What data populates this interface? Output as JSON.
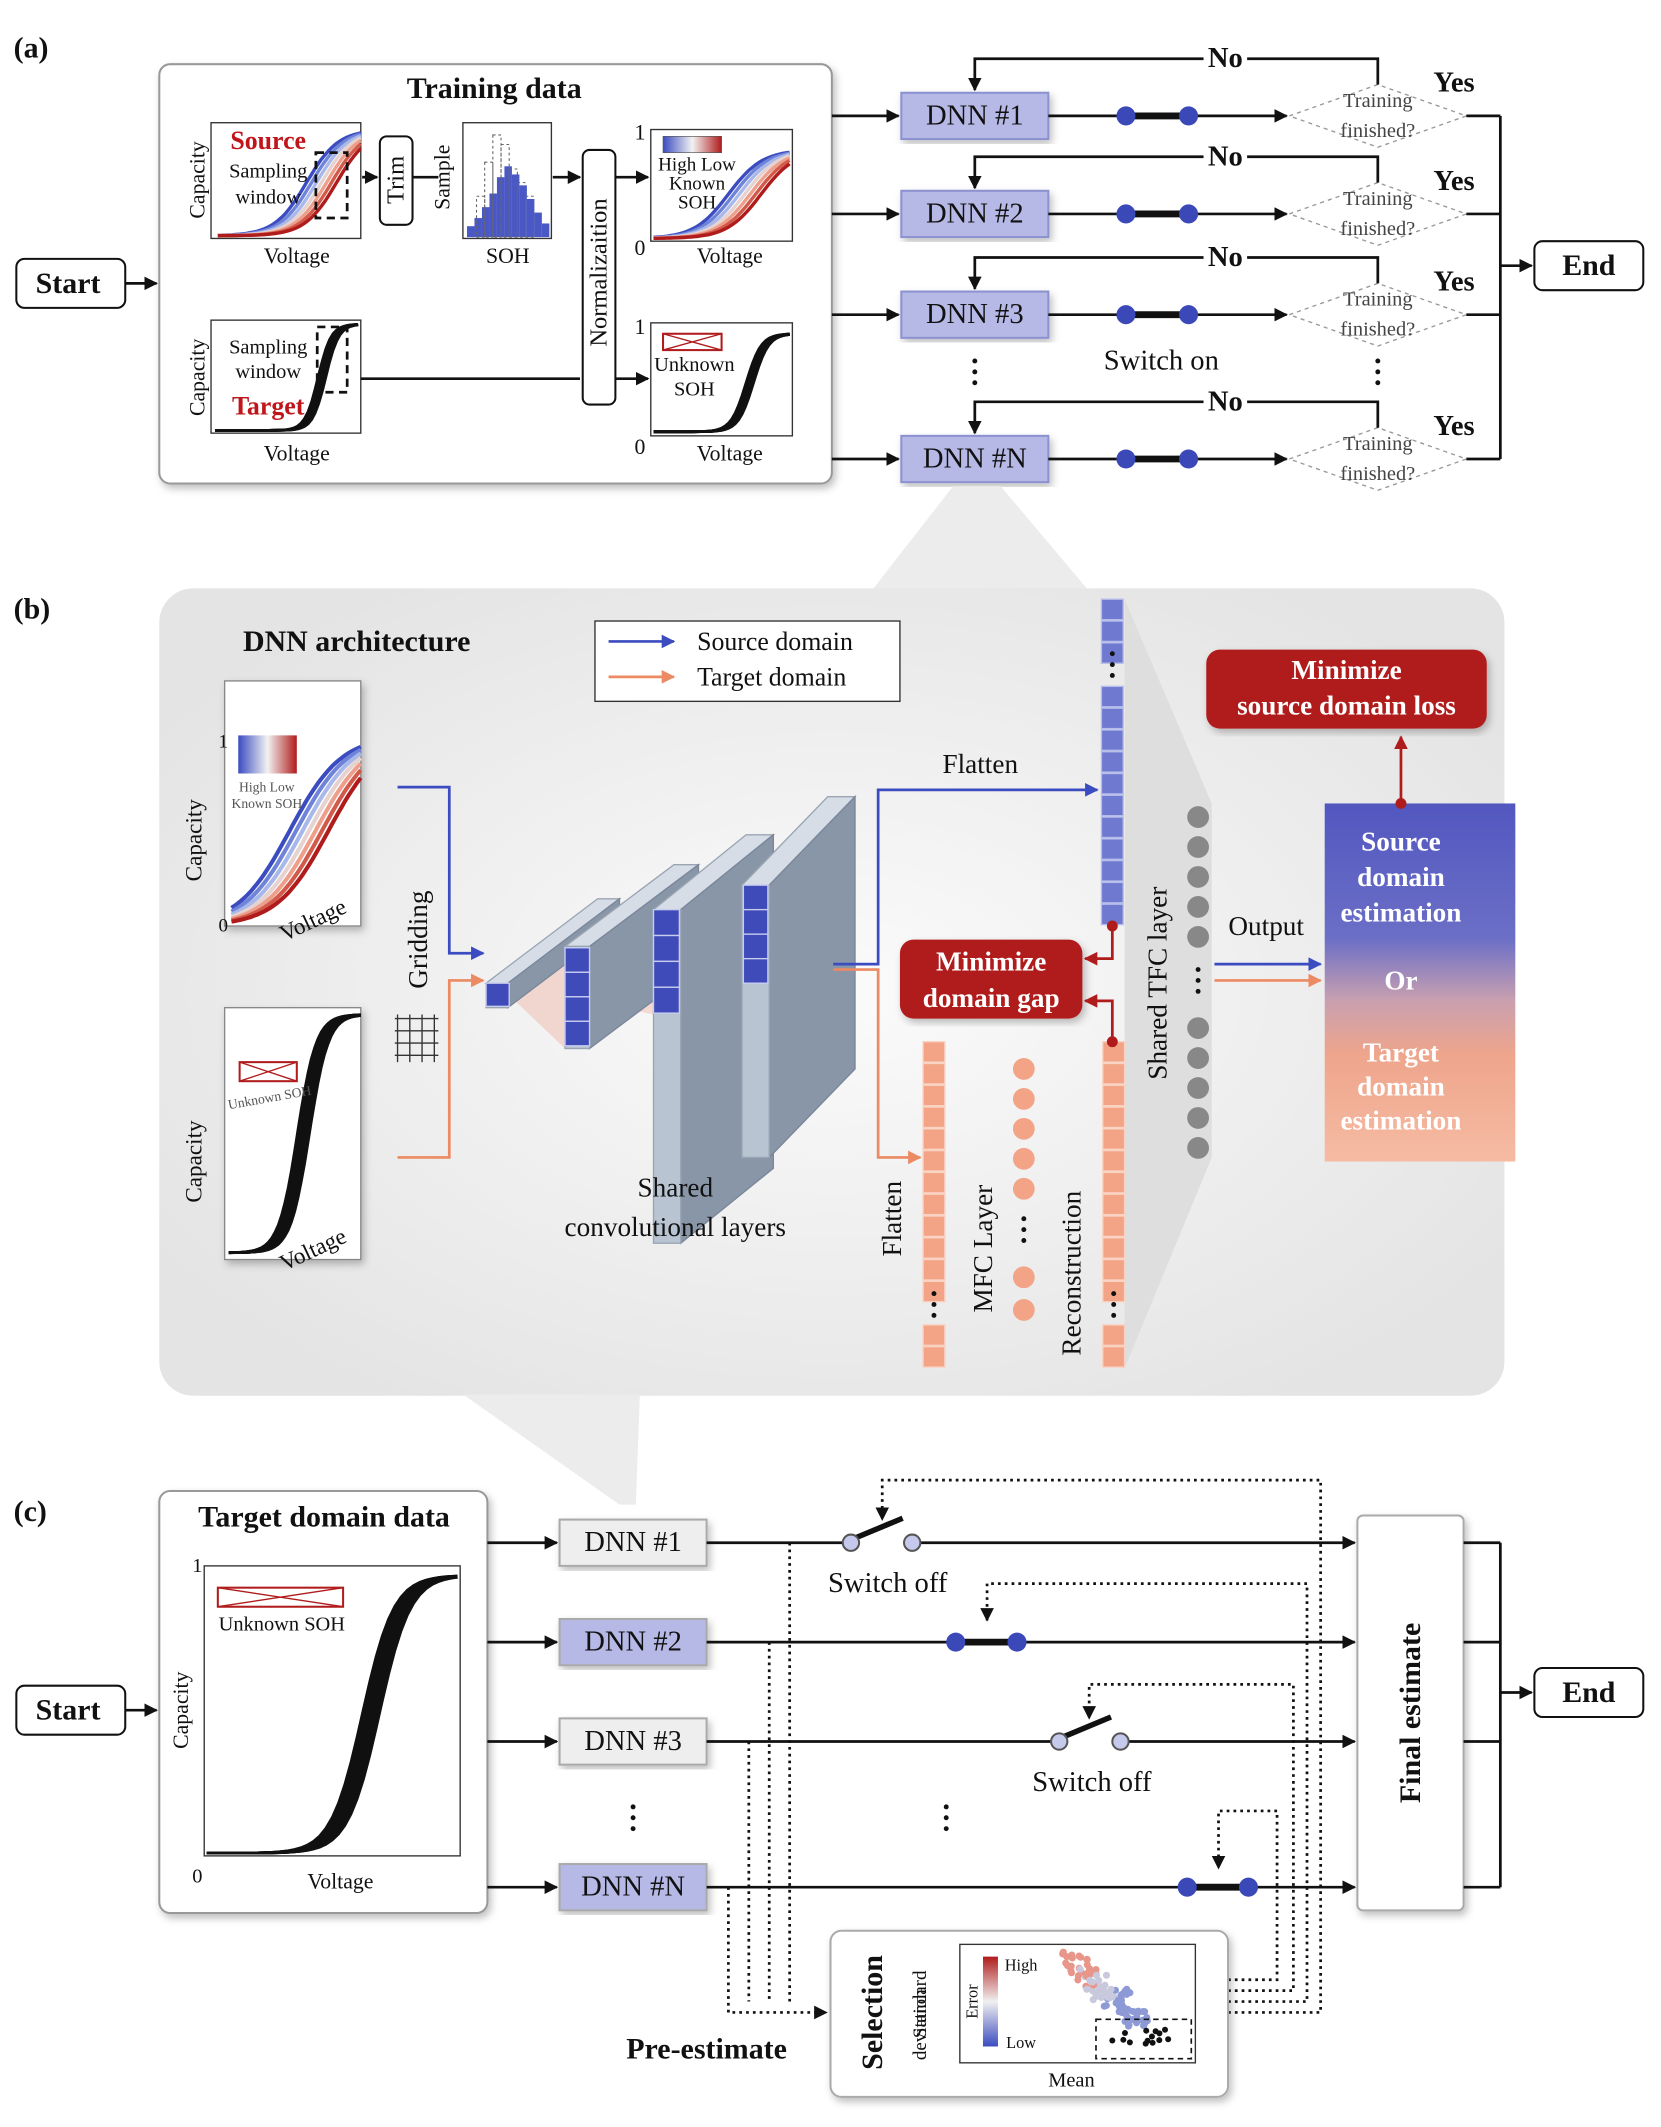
{
  "panel_a": {
    "label": "(a)",
    "training_data": {
      "title": "Training data",
      "source_plot": {
        "series_label": "Source",
        "window": [
          "Sampling",
          "window"
        ],
        "y_axis": "Capacity",
        "x_axis": "Voltage"
      },
      "trim": "Trim",
      "histogram": {
        "y_axis": "Sample",
        "x_axis": "SOH"
      },
      "normalization": "Normalizaition",
      "source_normalized": {
        "y_max": "1",
        "y_min": "0",
        "legend": [
          "High Low",
          "Known",
          "SOH"
        ],
        "x_axis": "Voltage"
      },
      "target_plot": {
        "y_axis": "Capacity",
        "window": [
          "Sampling",
          "window"
        ],
        "series_label": "Target",
        "x_axis": "Voltage"
      },
      "target_normalized": {
        "y_max": "1",
        "y_min": "0",
        "legend": [
          "Unknown",
          "SOH"
        ],
        "x_axis": "Voltage"
      }
    },
    "start": "Start",
    "end": "End",
    "networks": [
      {
        "name": "DNN #1",
        "no": "No",
        "yes": "Yes",
        "decision": [
          "Training",
          "finished?"
        ]
      },
      {
        "name": "DNN #2",
        "no": "No",
        "yes": "Yes",
        "decision": [
          "Training",
          "finished?"
        ]
      },
      {
        "name": "DNN #3",
        "no": "No",
        "yes": "Yes",
        "decision": [
          "Training",
          "finished?"
        ]
      },
      {
        "name": "DNN #N",
        "no": "No",
        "yes": "Yes",
        "decision": [
          "Training",
          "finished?"
        ]
      }
    ],
    "switch_label": "Switch on"
  },
  "panel_b": {
    "label": "(b)",
    "title": "DNN architecture",
    "legend": [
      "Source domain",
      "Target domain"
    ],
    "source_input": {
      "y_axis": "Capacity",
      "x_axis": "Voltage",
      "y_max": "1",
      "y_min": "0",
      "legend": [
        "High   Low",
        "Known SOH"
      ]
    },
    "target_input": {
      "y_axis": "Capacity",
      "x_axis": "Voltage",
      "legend": "Unknown SOH"
    },
    "gridding": "Gridding",
    "conv_label": [
      "Shared",
      "convolutional layers"
    ],
    "flatten_source": "Flatten",
    "flatten_target": "Flatten",
    "mfc": "MFC Layer",
    "reconstruction": "Reconstruction",
    "domain_gap": [
      "Minimize",
      "domain gap"
    ],
    "source_loss": [
      "Minimize",
      "source domain loss"
    ],
    "tfc": "Shared TFC layer",
    "output": "Output",
    "estimation": {
      "source": [
        "Source",
        "domain",
        "estimation"
      ],
      "or": "Or",
      "target": [
        "Target",
        "domain",
        "estimation"
      ]
    }
  },
  "panel_c": {
    "label": "(c)",
    "target_data": {
      "title": "Target domain data",
      "y_max": "1",
      "y_min": "0",
      "legend": "Unknown SOH",
      "y_axis": "Capacity",
      "x_axis": "Voltage"
    },
    "start": "Start",
    "end": "End",
    "networks": [
      "DNN #1",
      "DNN #2",
      "DNN #3",
      "DNN #N"
    ],
    "switch_off": [
      "Switch off",
      "Switch off"
    ],
    "final": "Final estimate",
    "selection": {
      "title": "Selection",
      "y_axis": [
        "Standard",
        "deviation"
      ],
      "x_axis": "Mean",
      "colorbar": {
        "title": "Error",
        "high": "High",
        "low": "Low"
      }
    },
    "pre_estimate": "Pre-estimate"
  }
}
